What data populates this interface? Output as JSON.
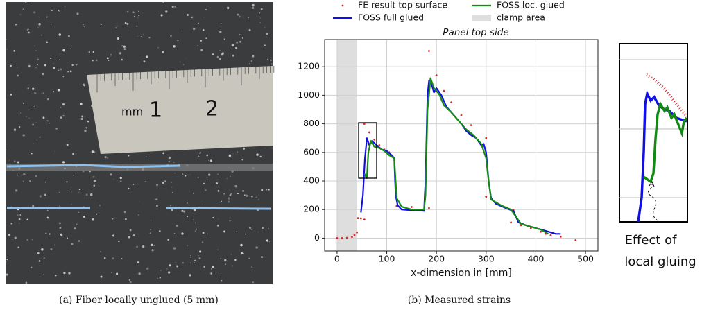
{
  "photo": {
    "ruler_unit": "mm",
    "ruler_marks": [
      "1",
      "2"
    ],
    "caption": "(a) Fiber locally unglued (5 mm)"
  },
  "chart_data": {
    "type": "line",
    "title": "Panel top side",
    "x_label": "x-dimension in [mm]",
    "xlim": [
      -25,
      525
    ],
    "xticks": [
      0,
      100,
      200,
      300,
      400,
      500
    ],
    "ylim": [
      -90,
      1390
    ],
    "yticks": [
      0,
      200,
      400,
      600,
      800,
      1000,
      1200
    ],
    "grid": true,
    "spans": [
      {
        "name": "clamp area",
        "range": [
          0,
          40
        ],
        "color": "#dedede"
      }
    ],
    "series": [
      {
        "name": "FE result top surface",
        "color": "#d62728",
        "style": "dots",
        "x": [
          0,
          10,
          20,
          30,
          35,
          40,
          42,
          48,
          55,
          55,
          65,
          75,
          85,
          95,
          105,
          120,
          150,
          185,
          185,
          200,
          215,
          230,
          250,
          270,
          300,
          300,
          320,
          340,
          355,
          350,
          370,
          390,
          410,
          430,
          420,
          450,
          480
        ],
        "values": [
          0,
          0,
          2,
          8,
          20,
          40,
          140,
          138,
          130,
          800,
          740,
          690,
          650,
          620,
          600,
          225,
          218,
          210,
          1310,
          1140,
          1030,
          950,
          860,
          790,
          700,
          290,
          250,
          215,
          195,
          110,
          90,
          70,
          45,
          20,
          30,
          10,
          -15
        ]
      },
      {
        "name": "FOSS full glued",
        "color": "#1010e0",
        "style": "line",
        "x": [
          48,
          52,
          56,
          60,
          65,
          70,
          80,
          90,
          100,
          110,
          115,
          118,
          122,
          130,
          150,
          170,
          175,
          178,
          182,
          185,
          190,
          195,
          200,
          210,
          220,
          230,
          240,
          250,
          260,
          270,
          280,
          290,
          295,
          300,
          305,
          310,
          320,
          340,
          355,
          365,
          380,
          400,
          420,
          440,
          450
        ],
        "values": [
          180,
          300,
          550,
          700,
          650,
          680,
          650,
          620,
          610,
          580,
          560,
          300,
          230,
          200,
          195,
          195,
          190,
          400,
          1000,
          1100,
          1080,
          1020,
          1050,
          1000,
          920,
          880,
          840,
          800,
          750,
          720,
          700,
          650,
          660,
          600,
          400,
          280,
          240,
          210,
          190,
          110,
          90,
          70,
          50,
          30,
          30
        ]
      },
      {
        "name": "FOSS loc. glued",
        "color": "#138a13",
        "style": "line",
        "x": [
          55,
          60,
          63,
          68,
          75,
          85,
          95,
          105,
          115,
          120,
          130,
          150,
          175,
          178,
          182,
          185,
          188,
          195,
          205,
          215,
          230,
          245,
          260,
          275,
          290,
          300,
          305,
          310,
          330,
          350,
          360,
          370,
          390,
          410,
          425
        ],
        "values": [
          450,
          420,
          600,
          680,
          640,
          630,
          610,
          580,
          560,
          280,
          220,
          200,
          200,
          300,
          900,
          1000,
          1120,
          1050,
          1010,
          930,
          880,
          820,
          760,
          720,
          660,
          560,
          400,
          270,
          230,
          200,
          150,
          100,
          80,
          60,
          30
        ]
      }
    ],
    "caption": "(b) Measured strains"
  },
  "inset": {
    "annotation": [
      "Effect of",
      "local gluing"
    ]
  }
}
